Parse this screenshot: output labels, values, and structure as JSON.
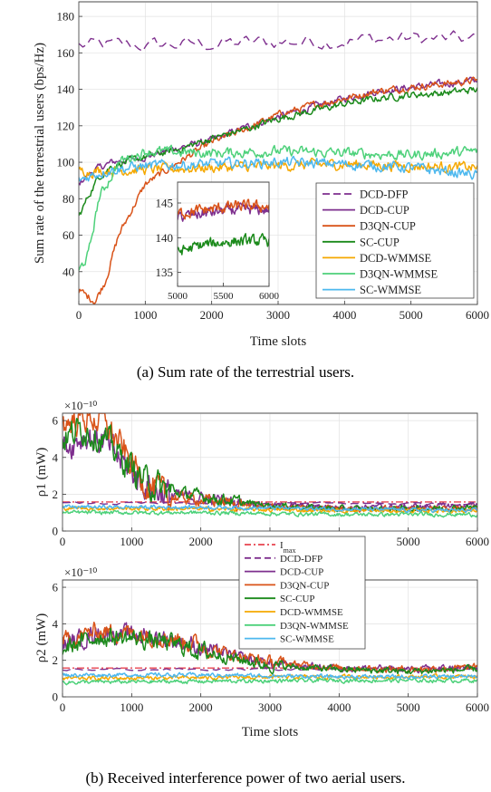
{
  "colors": {
    "DCD-DFP": "#7e2f8e",
    "DCD-CUP": "#7e2f8e",
    "D3QN-CUP": "#d95319",
    "SC-CUP": "#1b8a1b",
    "DCD-WMMSE": "#f5a800",
    "D3QN-WMMSE": "#4dd17a",
    "SC-WMMSE": "#4db8ee",
    "Imax": "#e8434f"
  },
  "captions": {
    "a": "(a) Sum rate of the terrestrial users.",
    "b": "(b) Received interference power of two aerial users."
  },
  "chart_data": [
    {
      "type": "line",
      "id": "a",
      "xlabel": "Time slots",
      "ylabel": "Sum rate of the terrestrial users (bps/Hz)",
      "xlim": [
        0,
        6000
      ],
      "ylim": [
        22,
        188
      ],
      "xticks": [
        "0",
        "1000",
        "2000",
        "3000",
        "4000",
        "5000",
        "6000"
      ],
      "yticks": [
        "40",
        "60",
        "80",
        "100",
        "120",
        "140",
        "160",
        "180"
      ],
      "legend_position": "lower-right",
      "legend": [
        "DCD-DFP",
        "DCD-CUP",
        "D3QN-CUP",
        "SC-CUP",
        "DCD-WMMSE",
        "D3QN-WMMSE",
        "SC-WMMSE"
      ],
      "series": [
        {
          "name": "DCD-DFP",
          "dash": true,
          "x": [
            0,
            1000,
            2000,
            3000,
            4000,
            5000,
            6000
          ],
          "values": [
            164,
            164,
            165,
            166,
            167,
            168,
            167
          ]
        },
        {
          "name": "DCD-CUP",
          "x": [
            0,
            100,
            250,
            500,
            1000,
            1500,
            2000,
            2500,
            3000,
            3500,
            4000,
            4500,
            5000,
            5500,
            6000
          ],
          "values": [
            88,
            92,
            96,
            100,
            103,
            108,
            112,
            119,
            125,
            130,
            135,
            139,
            141,
            143,
            145
          ]
        },
        {
          "name": "D3QN-CUP",
          "x": [
            0,
            100,
            250,
            400,
            600,
            1000,
            1500,
            2000,
            2500,
            3000,
            3500,
            4000,
            4500,
            5000,
            5500,
            6000
          ],
          "values": [
            30,
            27,
            24,
            35,
            60,
            88,
            100,
            111,
            118,
            126,
            131,
            135,
            139,
            141,
            143,
            145
          ]
        },
        {
          "name": "SC-CUP",
          "x": [
            0,
            150,
            300,
            500,
            1000,
            1500,
            2000,
            2500,
            3000,
            3500,
            4000,
            4500,
            5000,
            5500,
            6000
          ],
          "values": [
            70,
            82,
            92,
            98,
            103,
            107,
            113,
            118,
            124,
            128,
            132,
            135,
            137,
            138,
            140
          ]
        },
        {
          "name": "DCD-WMMSE",
          "x": [
            0,
            1000,
            2000,
            3000,
            4000,
            5000,
            6000
          ],
          "values": [
            95,
            96,
            97,
            98,
            99,
            98,
            97
          ]
        },
        {
          "name": "D3QN-WMMSE",
          "x": [
            0,
            150,
            300,
            600,
            1000,
            2000,
            3000,
            4000,
            5000,
            6000
          ],
          "values": [
            40,
            50,
            80,
            100,
            106,
            105,
            106,
            105,
            104,
            106
          ]
        },
        {
          "name": "SC-WMMSE",
          "x": [
            0,
            200,
            500,
            1000,
            2000,
            3000,
            4000,
            5000,
            6000
          ],
          "values": [
            90,
            93,
            96,
            98,
            99,
            100,
            99,
            97,
            93
          ]
        }
      ],
      "inset": {
        "xlim": [
          5000,
          6000
        ],
        "ylim": [
          133,
          148
        ],
        "xticks": [
          "5000",
          "5500",
          "6000"
        ],
        "yticks": [
          "135",
          "140",
          "145"
        ]
      }
    },
    {
      "type": "line",
      "id": "b1",
      "xlabel": "",
      "ylabel": "ρ1 (mW)",
      "exponent": "×10⁻¹⁰",
      "xlim": [
        0,
        6000
      ],
      "ylim": [
        0,
        6.4
      ],
      "xticks": [
        "0",
        "1000",
        "2000",
        "3000",
        "4000",
        "5000",
        "6000"
      ],
      "yticks": [
        "0",
        "2",
        "4",
        "6"
      ],
      "series": [
        {
          "name": "I_max",
          "dashdot": true,
          "x": [
            0,
            6000
          ],
          "values": [
            1.58,
            1.58
          ]
        },
        {
          "name": "DCD-DFP",
          "dash": true,
          "x": [
            0,
            6000
          ],
          "values": [
            1.5,
            1.5
          ]
        },
        {
          "name": "DCD-CUP",
          "x": [
            0,
            300,
            600,
            900,
            1200,
            1500,
            2000,
            2500,
            3000,
            4000,
            5000,
            6000
          ],
          "values": [
            4.5,
            5.2,
            4.8,
            3.6,
            2.5,
            2.0,
            1.8,
            1.6,
            1.4,
            1.3,
            1.3,
            1.4
          ]
        },
        {
          "name": "D3QN-CUP",
          "x": [
            0,
            300,
            600,
            900,
            1200,
            1500,
            2000,
            2500,
            3000,
            4000,
            5000,
            6000
          ],
          "values": [
            5.8,
            6.2,
            6.0,
            4.2,
            2.6,
            1.9,
            1.7,
            1.5,
            1.3,
            1.2,
            1.2,
            1.3
          ]
        },
        {
          "name": "SC-CUP",
          "x": [
            0,
            300,
            600,
            900,
            1200,
            1500,
            2000,
            2500,
            3000,
            4000,
            5000,
            6000
          ],
          "values": [
            5.0,
            5.6,
            5.0,
            3.8,
            2.7,
            2.2,
            1.9,
            1.6,
            1.4,
            1.2,
            1.2,
            1.3
          ]
        },
        {
          "name": "DCD-WMMSE",
          "x": [
            0,
            2000,
            4000,
            6000
          ],
          "values": [
            1.25,
            1.2,
            1.1,
            1.1
          ]
        },
        {
          "name": "D3QN-WMMSE",
          "x": [
            0,
            2000,
            4000,
            6000
          ],
          "values": [
            1.0,
            1.0,
            0.9,
            0.9
          ]
        },
        {
          "name": "SC-WMMSE",
          "x": [
            0,
            2000,
            4000,
            6000
          ],
          "values": [
            1.3,
            1.3,
            1.2,
            1.1
          ]
        }
      ]
    },
    {
      "type": "line",
      "id": "b2",
      "xlabel": "Time slots",
      "ylabel": "ρ2 (mW)",
      "exponent": "×10⁻¹⁰",
      "xlim": [
        0,
        6000
      ],
      "ylim": [
        0,
        6.4
      ],
      "xticks": [
        "0",
        "1000",
        "2000",
        "3000",
        "4000",
        "5000",
        "6000"
      ],
      "yticks": [
        "0",
        "2",
        "4",
        "6"
      ],
      "legend_position": "center",
      "legend": [
        "I",
        "DCD-DFP",
        "DCD-CUP",
        "D3QN-CUP",
        "SC-CUP",
        "DCD-WMMSE",
        "D3QN-WMMSE",
        "SC-WMMSE"
      ],
      "legend_subscript": "max",
      "series": [
        {
          "name": "I_max",
          "dashdot": true,
          "x": [
            0,
            6000
          ],
          "values": [
            1.58,
            1.58
          ]
        },
        {
          "name": "DCD-DFP",
          "dash": true,
          "x": [
            0,
            6000
          ],
          "values": [
            1.5,
            1.5
          ]
        },
        {
          "name": "DCD-CUP",
          "x": [
            0,
            500,
            1000,
            1500,
            2000,
            2500,
            3000,
            4000,
            5000,
            6000
          ],
          "values": [
            2.8,
            3.5,
            3.4,
            3.2,
            2.7,
            2.2,
            1.8,
            1.6,
            1.5,
            1.6
          ]
        },
        {
          "name": "D3QN-CUP",
          "x": [
            0,
            500,
            1000,
            1500,
            2000,
            2500,
            3000,
            4000,
            5000,
            6000
          ],
          "values": [
            3.0,
            3.6,
            3.5,
            3.3,
            2.8,
            2.3,
            1.9,
            1.6,
            1.5,
            1.6
          ]
        },
        {
          "name": "SC-CUP",
          "x": [
            0,
            500,
            1000,
            1500,
            2000,
            2500,
            3000,
            4000,
            5000,
            6000
          ],
          "values": [
            2.6,
            3.3,
            3.2,
            3.0,
            2.5,
            2.1,
            1.7,
            1.5,
            1.4,
            1.5
          ]
        },
        {
          "name": "DCD-WMMSE",
          "x": [
            0,
            2000,
            4000,
            6000
          ],
          "values": [
            1.0,
            1.05,
            1.1,
            1.1
          ]
        },
        {
          "name": "D3QN-WMMSE",
          "x": [
            0,
            2000,
            4000,
            6000
          ],
          "values": [
            0.8,
            0.85,
            0.9,
            0.9
          ]
        },
        {
          "name": "SC-WMMSE",
          "x": [
            0,
            2000,
            4000,
            6000
          ],
          "values": [
            1.2,
            1.2,
            1.1,
            1.1
          ]
        }
      ]
    }
  ]
}
